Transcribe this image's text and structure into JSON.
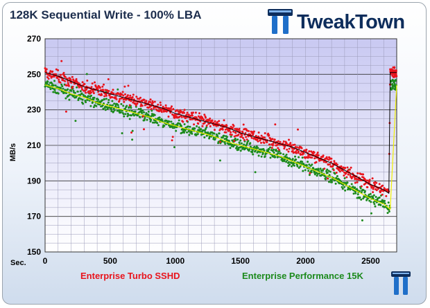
{
  "header": {
    "title": "128K Sequential Write - 100% LBA",
    "brand": "TweakTown"
  },
  "chart_data": {
    "type": "scatter",
    "title": "128K Sequential Write - 100% LBA",
    "xlabel": "Sec.",
    "ylabel": "MB/s",
    "xlim": [
      0,
      2700
    ],
    "ylim": [
      150,
      270
    ],
    "xticks": [
      0,
      500,
      1000,
      1500,
      2000,
      2500
    ],
    "yticks": [
      150,
      170,
      190,
      210,
      230,
      250,
      270
    ],
    "grid": true,
    "legend_position": "bottom",
    "series": [
      {
        "name": "Enterprise Turbo SSHD",
        "color": "#e8141c",
        "x": [
          0,
          100,
          200,
          300,
          400,
          500,
          600,
          700,
          800,
          900,
          1000,
          1100,
          1200,
          1300,
          1400,
          1500,
          1600,
          1700,
          1800,
          1900,
          2000,
          2100,
          2200,
          2300,
          2400,
          2500,
          2600,
          2640,
          2650,
          2700
        ],
        "y": [
          251,
          249,
          246,
          243,
          241,
          239,
          237,
          235,
          233,
          231,
          228,
          226,
          224,
          222,
          220,
          217,
          215,
          213,
          211,
          209,
          206,
          203,
          200,
          196,
          192,
          188,
          185,
          183,
          251,
          251
        ]
      },
      {
        "name": "Enterprise Performance 15K",
        "color": "#1c8a1c",
        "x": [
          0,
          100,
          200,
          300,
          400,
          500,
          600,
          700,
          800,
          900,
          1000,
          1100,
          1200,
          1300,
          1400,
          1500,
          1600,
          1700,
          1800,
          1900,
          2000,
          2100,
          2200,
          2300,
          2400,
          2500,
          2600,
          2650,
          2700
        ],
        "y": [
          244,
          242,
          239,
          237,
          234,
          232,
          230,
          228,
          226,
          223,
          221,
          219,
          217,
          215,
          212,
          210,
          208,
          206,
          204,
          201,
          198,
          195,
          192,
          188,
          184,
          180,
          177,
          174,
          244
        ]
      }
    ]
  }
}
